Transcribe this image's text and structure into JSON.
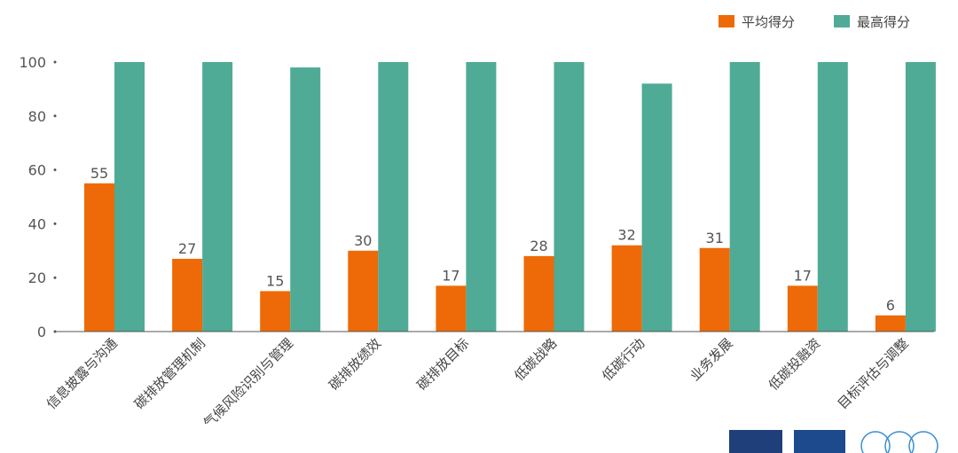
{
  "chart_data": {
    "type": "bar",
    "categories": [
      "信息披露与沟通",
      "碳排放管理机制",
      "气候风险识别与管理",
      "碳排放绩效",
      "碳排放目标",
      "低碳战略",
      "低碳行动",
      "业务发展",
      "低碳投融资",
      "目标评估与调整"
    ],
    "series": [
      {
        "name": "平均得分",
        "values": [
          55,
          27,
          15,
          30,
          17,
          28,
          32,
          31,
          17,
          6
        ],
        "color": "#ee6a08"
      },
      {
        "name": "最高得分",
        "values": [
          100,
          100,
          98,
          100,
          100,
          100,
          92,
          100,
          100,
          100
        ],
        "color": "#4fab95"
      }
    ],
    "data_labels_series": 0,
    "ylim": [
      0,
      100
    ],
    "yticks": [
      0,
      20,
      40,
      60,
      80,
      100
    ],
    "grid": false,
    "legend_position": "top-right"
  }
}
